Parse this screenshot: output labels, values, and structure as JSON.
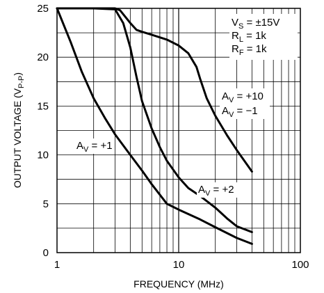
{
  "chart_data": {
    "type": "line",
    "xlabel": "FREQUENCY (MHz)",
    "ylabel_main": "OUTPUT VOLTAGE (V",
    "ylabel_sub": "P-P",
    "ylabel_close": ")",
    "x_scale": "log",
    "xlim": [
      1,
      100
    ],
    "ylim": [
      0,
      25
    ],
    "x_ticks": [
      {
        "value": 1,
        "label": "1"
      },
      {
        "value": 10,
        "label": "10"
      },
      {
        "value": 100,
        "label": "100"
      }
    ],
    "y_ticks": [
      {
        "value": 0,
        "label": "0"
      },
      {
        "value": 5,
        "label": "5"
      },
      {
        "value": 10,
        "label": "10"
      },
      {
        "value": 15,
        "label": "15"
      },
      {
        "value": 20,
        "label": "20"
      },
      {
        "value": 25,
        "label": "25"
      }
    ],
    "grid": true,
    "conditions": [
      {
        "main": "V",
        "sub": "S",
        "rest": " = ±15V"
      },
      {
        "main": "R",
        "sub": "L",
        "rest": " = 1k"
      },
      {
        "main": "R",
        "sub": "F",
        "rest": " = 1k"
      }
    ],
    "series": [
      {
        "name": "A_V = +1",
        "label_lines": [
          {
            "main": "A",
            "sub": "V",
            "rest": " = +1"
          }
        ],
        "x": [
          1,
          1.3,
          1.6,
          2,
          2.5,
          3,
          4,
          5,
          6,
          8,
          10,
          15,
          20,
          30,
          40
        ],
        "y": [
          25,
          21.5,
          18.5,
          15.8,
          13.7,
          12.1,
          10.0,
          8.4,
          7.0,
          5.0,
          4.4,
          3.4,
          2.6,
          1.5,
          0.9
        ]
      },
      {
        "name": "A_V = +2",
        "label_lines": [
          {
            "main": "A",
            "sub": "V",
            "rest": " = +2"
          }
        ],
        "x": [
          1,
          2,
          3,
          3.5,
          4,
          4.5,
          5,
          6,
          7,
          8,
          10,
          12,
          15,
          20,
          25,
          30,
          40
        ],
        "y": [
          25,
          25,
          24.9,
          23.5,
          21.0,
          18.0,
          15.5,
          12.7,
          10.8,
          9.4,
          7.7,
          6.6,
          5.8,
          4.6,
          3.5,
          2.7,
          2.1
        ]
      },
      {
        "name": "A_V = +10, A_V = -1",
        "label_lines": [
          {
            "main": "A",
            "sub": "V",
            "rest": " = +10"
          },
          {
            "main": "A",
            "sub": "V",
            "rest": " = −1"
          }
        ],
        "x": [
          1,
          2,
          3,
          3.3,
          4,
          4.5,
          5,
          6,
          8,
          10,
          12,
          14,
          15,
          17,
          20,
          25,
          30,
          40
        ],
        "y": [
          25,
          25,
          25,
          24.8,
          23.5,
          22.8,
          22.6,
          22.3,
          21.8,
          21.2,
          20.4,
          19.0,
          17.8,
          15.8,
          14.0,
          12.0,
          10.5,
          8.3
        ]
      }
    ]
  }
}
